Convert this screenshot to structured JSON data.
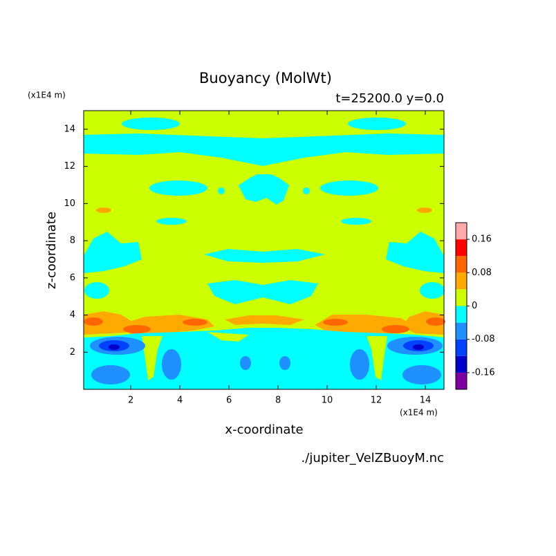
{
  "chart_data": {
    "type": "contour",
    "title": "Buoyancy (MolWt)",
    "subtitle": "t=25200.0 y=0.0",
    "x_label": "x-coordinate",
    "y_label": "z-coordinate",
    "x_unit": "(x1E4 m)",
    "y_unit": "(x1E4 m)",
    "footer": "./jupiter_VelZBuoyM.nc",
    "xlim": [
      0.08,
      14.76
    ],
    "ylim": [
      0,
      15
    ],
    "xticks": [
      2,
      4,
      6,
      8,
      10,
      12,
      14
    ],
    "yticks": [
      2,
      4,
      6,
      8,
      10,
      12,
      14
    ],
    "levels": [
      -0.2,
      -0.16,
      -0.12,
      -0.08,
      -0.04,
      0,
      0.04,
      0.08,
      0.12,
      0.16,
      0.2
    ],
    "colors": [
      "#7f00a0",
      "#0000c8",
      "#0040ff",
      "#1e90ff",
      "#00ffff",
      "#ccff00",
      "#ffaa00",
      "#ff6600",
      "#ff0000",
      "#ffaaaa"
    ],
    "colorbar_ticks": [
      0.16,
      0.08,
      0,
      -0.08,
      -0.16
    ]
  }
}
